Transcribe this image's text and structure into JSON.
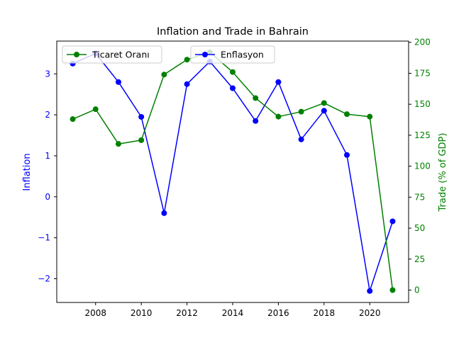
{
  "chart_data": {
    "type": "line",
    "title": "Inflation and Trade in Bahrain",
    "xlabel": "",
    "x": [
      2007,
      2008,
      2009,
      2010,
      2011,
      2012,
      2013,
      2014,
      2015,
      2016,
      2017,
      2018,
      2019,
      2020,
      2021
    ],
    "xlim": [
      2006.3,
      2021.7
    ],
    "x_ticks": [
      2008,
      2010,
      2012,
      2014,
      2016,
      2018,
      2020
    ],
    "grid": false,
    "axes": {
      "left": {
        "label": "Inflation",
        "color": "#0000ff",
        "ylim": [
          -2.58,
          3.8
        ],
        "ticks": [
          -2,
          -1,
          0,
          1,
          2,
          3
        ],
        "tick_labels": [
          "−2",
          "−1",
          "0",
          "1",
          "2",
          "3"
        ]
      },
      "right": {
        "label": "Trade (% of GDP)",
        "color": "#008000",
        "ylim": [
          -10,
          201
        ],
        "ticks": [
          0,
          25,
          50,
          75,
          100,
          125,
          150,
          175,
          200
        ],
        "tick_labels": [
          "0",
          "25",
          "50",
          "75",
          "100",
          "125",
          "150",
          "175",
          "200"
        ]
      }
    },
    "series": [
      {
        "name": "Enflasyon",
        "axis": "left",
        "color": "#0000ff",
        "values": [
          3.25,
          3.5,
          2.8,
          1.95,
          -0.4,
          2.75,
          3.3,
          2.65,
          1.85,
          2.8,
          1.4,
          2.1,
          1.02,
          -2.3,
          -0.6
        ]
      },
      {
        "name": "Ticaret Oranı",
        "axis": "right",
        "color": "#008000",
        "values": [
          138,
          146,
          118,
          121,
          174,
          186,
          192,
          176,
          155,
          140,
          144,
          151,
          142,
          140,
          0
        ]
      }
    ],
    "legends": [
      {
        "placement": "upper-left",
        "entries": [
          "Ticaret Oranı"
        ]
      },
      {
        "placement": "upper-center",
        "entries": [
          "Enflasyon"
        ]
      }
    ]
  }
}
